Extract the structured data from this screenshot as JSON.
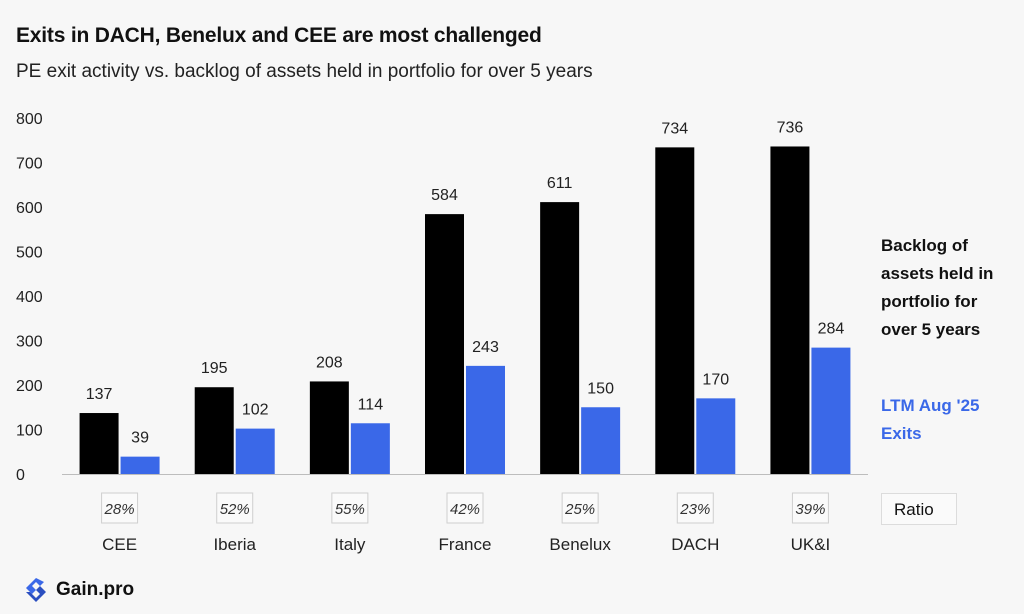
{
  "title": "Exits in DACH, Benelux and CEE are most challenged",
  "subtitle": "PE exit activity vs. backlog of assets held in portfolio for over 5 years",
  "legend": {
    "backlog_label": "Backlog of assets held in portfolio for over 5 years",
    "exits_label": "LTM Aug '25 Exits",
    "ratio_label": "Ratio"
  },
  "brand": {
    "name": "Gain.pro",
    "logo_icon": "gain-pro-logo-icon"
  },
  "colors": {
    "backlog": "#000000",
    "exits": "#3a68e8",
    "axis": "#666666"
  },
  "chart_data": {
    "type": "bar",
    "categories": [
      "CEE",
      "Iberia",
      "Italy",
      "France",
      "Benelux",
      "DACH",
      "UK&I"
    ],
    "series": [
      {
        "name": "Backlog of assets held in portfolio for over 5 years",
        "values": [
          137,
          195,
          208,
          584,
          611,
          734,
          736
        ]
      },
      {
        "name": "LTM Aug '25 Exits",
        "values": [
          39,
          102,
          114,
          243,
          150,
          170,
          284
        ]
      }
    ],
    "ratios": [
      "28%",
      "52%",
      "55%",
      "42%",
      "25%",
      "23%",
      "39%"
    ],
    "yticks": [
      0,
      100,
      200,
      300,
      400,
      500,
      600,
      700,
      800
    ],
    "ylim": [
      0,
      800
    ],
    "grid": false,
    "legend_position": "right"
  }
}
